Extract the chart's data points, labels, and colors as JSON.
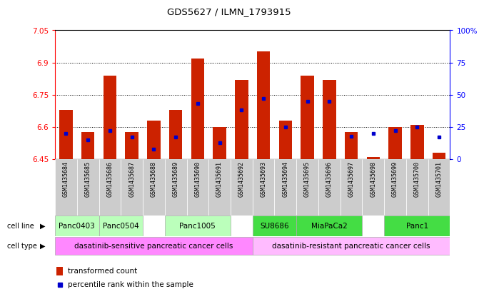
{
  "title": "GDS5627 / ILMN_1793915",
  "samples": [
    "GSM1435684",
    "GSM1435685",
    "GSM1435686",
    "GSM1435687",
    "GSM1435688",
    "GSM1435689",
    "GSM1435690",
    "GSM1435691",
    "GSM1435692",
    "GSM1435693",
    "GSM1435694",
    "GSM1435695",
    "GSM1435696",
    "GSM1435697",
    "GSM1435698",
    "GSM1435699",
    "GSM1435700",
    "GSM1435701"
  ],
  "bar_values": [
    6.68,
    6.575,
    6.84,
    6.575,
    6.63,
    6.68,
    6.92,
    6.6,
    6.82,
    6.95,
    6.63,
    6.84,
    6.82,
    6.575,
    6.46,
    6.6,
    6.61,
    6.48
  ],
  "percentile_values": [
    20,
    15,
    22,
    17,
    8,
    17,
    43,
    13,
    38,
    47,
    25,
    45,
    45,
    18,
    20,
    22,
    25,
    17
  ],
  "ymin": 6.45,
  "ymax": 7.05,
  "yticks": [
    6.45,
    6.6,
    6.75,
    6.9,
    7.05
  ],
  "right_yticks": [
    0,
    25,
    50,
    75,
    100
  ],
  "right_ytick_labels": [
    "0",
    "25",
    "50",
    "75",
    "100%"
  ],
  "cl_groups": [
    {
      "name": "Panc0403",
      "start": 0,
      "end": 2,
      "color": "#bbffbb"
    },
    {
      "name": "Panc0504",
      "start": 2,
      "end": 4,
      "color": "#bbffbb"
    },
    {
      "name": "Panc1005",
      "start": 5,
      "end": 8,
      "color": "#bbffbb"
    },
    {
      "name": "SU8686",
      "start": 9,
      "end": 11,
      "color": "#44dd44"
    },
    {
      "name": "MiaPaCa2",
      "start": 11,
      "end": 14,
      "color": "#44dd44"
    },
    {
      "name": "Panc1",
      "start": 15,
      "end": 18,
      "color": "#44dd44"
    }
  ],
  "ct_groups": [
    {
      "name": "dasatinib-sensitive pancreatic cancer cells",
      "start": 0,
      "end": 9,
      "color": "#ff88ff"
    },
    {
      "name": "dasatinib-resistant pancreatic cancer cells",
      "start": 9,
      "end": 18,
      "color": "#ffbbff"
    }
  ],
  "bar_color": "#cc2200",
  "dot_color": "#0000cc",
  "sample_col_bg": "#cccccc"
}
